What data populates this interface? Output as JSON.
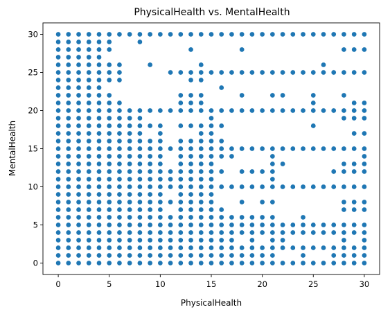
{
  "chart_data": {
    "type": "scatter",
    "title": "PhysicalHealth vs. MentalHealth",
    "xlabel": "PhysicalHealth",
    "ylabel": "MentalHealth",
    "xlim": [
      -1.5,
      31.5
    ],
    "ylim": [
      -1.5,
      31.5
    ],
    "xticks": [
      0,
      5,
      10,
      15,
      20,
      25,
      30
    ],
    "yticks": [
      0,
      5,
      10,
      15,
      20,
      25,
      30
    ],
    "grid": false,
    "marker_color": "#1f77b4",
    "missing_points": [
      [
        5,
        23
      ],
      [
        5,
        27
      ],
      [
        6,
        22
      ],
      [
        6,
        23
      ],
      [
        6,
        27
      ],
      [
        6,
        28
      ],
      [
        6,
        29
      ],
      [
        7,
        21
      ],
      [
        7,
        22
      ],
      [
        7,
        23
      ],
      [
        7,
        24
      ],
      [
        7,
        25
      ],
      [
        7,
        26
      ],
      [
        7,
        27
      ],
      [
        7,
        28
      ],
      [
        7,
        29
      ],
      [
        8,
        21
      ],
      [
        8,
        22
      ],
      [
        8,
        23
      ],
      [
        8,
        24
      ],
      [
        8,
        25
      ],
      [
        8,
        26
      ],
      [
        8,
        27
      ],
      [
        8,
        28
      ],
      [
        9,
        17
      ],
      [
        9,
        19
      ],
      [
        9,
        21
      ],
      [
        9,
        22
      ],
      [
        9,
        23
      ],
      [
        9,
        24
      ],
      [
        9,
        25
      ],
      [
        9,
        27
      ],
      [
        9,
        28
      ],
      [
        9,
        29
      ],
      [
        10,
        19
      ],
      [
        10,
        21
      ],
      [
        10,
        22
      ],
      [
        10,
        23
      ],
      [
        10,
        24
      ],
      [
        10,
        25
      ],
      [
        10,
        26
      ],
      [
        10,
        27
      ],
      [
        10,
        28
      ],
      [
        10,
        29
      ],
      [
        11,
        7
      ],
      [
        11,
        9
      ],
      [
        11,
        13
      ],
      [
        11,
        14
      ],
      [
        11,
        16
      ],
      [
        11,
        17
      ],
      [
        11,
        18
      ],
      [
        11,
        19
      ],
      [
        11,
        21
      ],
      [
        11,
        22
      ],
      [
        11,
        23
      ],
      [
        11,
        24
      ],
      [
        11,
        26
      ],
      [
        11,
        27
      ],
      [
        11,
        28
      ],
      [
        11,
        29
      ],
      [
        12,
        17
      ],
      [
        12,
        19
      ],
      [
        12,
        23
      ],
      [
        12,
        24
      ],
      [
        12,
        26
      ],
      [
        12,
        27
      ],
      [
        12,
        28
      ],
      [
        12,
        29
      ],
      [
        13,
        17
      ],
      [
        13,
        19
      ],
      [
        13,
        23
      ],
      [
        13,
        26
      ],
      [
        13,
        27
      ],
      [
        13,
        29
      ],
      [
        14,
        19
      ],
      [
        14,
        23
      ],
      [
        14,
        27
      ],
      [
        14,
        28
      ],
      [
        14,
        29
      ],
      [
        15,
        21
      ],
      [
        15,
        22
      ],
      [
        15,
        23
      ],
      [
        15,
        24
      ],
      [
        15,
        26
      ],
      [
        15,
        27
      ],
      [
        15,
        28
      ],
      [
        15,
        29
      ],
      [
        16,
        8
      ],
      [
        16,
        9
      ],
      [
        16,
        11
      ],
      [
        16,
        13
      ],
      [
        16,
        17
      ],
      [
        16,
        19
      ],
      [
        16,
        21
      ],
      [
        16,
        22
      ],
      [
        16,
        24
      ],
      [
        16,
        26
      ],
      [
        16,
        27
      ],
      [
        16,
        28
      ],
      [
        16,
        29
      ],
      [
        17,
        7
      ],
      [
        17,
        8
      ],
      [
        17,
        9
      ],
      [
        17,
        11
      ],
      [
        17,
        12
      ],
      [
        17,
        13
      ],
      [
        17,
        16
      ],
      [
        17,
        17
      ],
      [
        17,
        18
      ],
      [
        17,
        19
      ],
      [
        17,
        21
      ],
      [
        17,
        22
      ],
      [
        17,
        23
      ],
      [
        17,
        24
      ],
      [
        17,
        26
      ],
      [
        17,
        27
      ],
      [
        17,
        28
      ],
      [
        17,
        29
      ],
      [
        18,
        3
      ],
      [
        18,
        7
      ],
      [
        18,
        9
      ],
      [
        18,
        11
      ],
      [
        18,
        13
      ],
      [
        18,
        14
      ],
      [
        18,
        16
      ],
      [
        18,
        17
      ],
      [
        18,
        18
      ],
      [
        18,
        19
      ],
      [
        18,
        21
      ],
      [
        18,
        23
      ],
      [
        18,
        24
      ],
      [
        18,
        26
      ],
      [
        18,
        27
      ],
      [
        18,
        29
      ],
      [
        19,
        7
      ],
      [
        19,
        8
      ],
      [
        19,
        9
      ],
      [
        19,
        11
      ],
      [
        19,
        13
      ],
      [
        19,
        14
      ],
      [
        19,
        16
      ],
      [
        19,
        17
      ],
      [
        19,
        18
      ],
      [
        19,
        19
      ],
      [
        19,
        21
      ],
      [
        19,
        22
      ],
      [
        19,
        23
      ],
      [
        19,
        24
      ],
      [
        19,
        26
      ],
      [
        19,
        27
      ],
      [
        19,
        28
      ],
      [
        19,
        29
      ],
      [
        20,
        3
      ],
      [
        20,
        7
      ],
      [
        20,
        9
      ],
      [
        20,
        11
      ],
      [
        20,
        13
      ],
      [
        20,
        14
      ],
      [
        20,
        16
      ],
      [
        20,
        17
      ],
      [
        20,
        18
      ],
      [
        20,
        19
      ],
      [
        20,
        21
      ],
      [
        20,
        22
      ],
      [
        20,
        23
      ],
      [
        20,
        24
      ],
      [
        20,
        26
      ],
      [
        20,
        27
      ],
      [
        20,
        28
      ],
      [
        20,
        29
      ],
      [
        21,
        7
      ],
      [
        21,
        9
      ],
      [
        21,
        16
      ],
      [
        21,
        17
      ],
      [
        21,
        18
      ],
      [
        21,
        19
      ],
      [
        21,
        21
      ],
      [
        21,
        23
      ],
      [
        21,
        24
      ],
      [
        21,
        26
      ],
      [
        21,
        27
      ],
      [
        21,
        28
      ],
      [
        21,
        29
      ],
      [
        22,
        1
      ],
      [
        22,
        6
      ],
      [
        22,
        7
      ],
      [
        22,
        8
      ],
      [
        22,
        9
      ],
      [
        22,
        11
      ],
      [
        22,
        12
      ],
      [
        22,
        14
      ],
      [
        22,
        16
      ],
      [
        22,
        17
      ],
      [
        22,
        18
      ],
      [
        22,
        19
      ],
      [
        22,
        21
      ],
      [
        22,
        23
      ],
      [
        22,
        24
      ],
      [
        22,
        26
      ],
      [
        22,
        27
      ],
      [
        22,
        28
      ],
      [
        22,
        29
      ],
      [
        23,
        1
      ],
      [
        23,
        3
      ],
      [
        23,
        6
      ],
      [
        23,
        7
      ],
      [
        23,
        8
      ],
      [
        23,
        9
      ],
      [
        23,
        11
      ],
      [
        23,
        12
      ],
      [
        23,
        13
      ],
      [
        23,
        14
      ],
      [
        23,
        16
      ],
      [
        23,
        17
      ],
      [
        23,
        18
      ],
      [
        23,
        19
      ],
      [
        23,
        21
      ],
      [
        23,
        22
      ],
      [
        23,
        23
      ],
      [
        23,
        24
      ],
      [
        23,
        26
      ],
      [
        23,
        27
      ],
      [
        23,
        28
      ],
      [
        23,
        29
      ],
      [
        24,
        3
      ],
      [
        24,
        7
      ],
      [
        24,
        8
      ],
      [
        24,
        9
      ],
      [
        24,
        11
      ],
      [
        24,
        12
      ],
      [
        24,
        13
      ],
      [
        24,
        14
      ],
      [
        24,
        16
      ],
      [
        24,
        17
      ],
      [
        24,
        18
      ],
      [
        24,
        19
      ],
      [
        24,
        21
      ],
      [
        24,
        22
      ],
      [
        24,
        23
      ],
      [
        24,
        24
      ],
      [
        24,
        26
      ],
      [
        24,
        27
      ],
      [
        24,
        28
      ],
      [
        24,
        29
      ],
      [
        25,
        1
      ],
      [
        25,
        3
      ],
      [
        25,
        6
      ],
      [
        25,
        7
      ],
      [
        25,
        8
      ],
      [
        25,
        9
      ],
      [
        25,
        11
      ],
      [
        25,
        12
      ],
      [
        25,
        13
      ],
      [
        25,
        14
      ],
      [
        25,
        16
      ],
      [
        25,
        17
      ],
      [
        25,
        19
      ],
      [
        25,
        23
      ],
      [
        25,
        24
      ],
      [
        25,
        26
      ],
      [
        25,
        27
      ],
      [
        25,
        28
      ],
      [
        25,
        29
      ],
      [
        26,
        1
      ],
      [
        26,
        3
      ],
      [
        26,
        6
      ],
      [
        26,
        7
      ],
      [
        26,
        8
      ],
      [
        26,
        9
      ],
      [
        26,
        11
      ],
      [
        26,
        12
      ],
      [
        26,
        13
      ],
      [
        26,
        14
      ],
      [
        26,
        16
      ],
      [
        26,
        17
      ],
      [
        26,
        18
      ],
      [
        26,
        19
      ],
      [
        26,
        21
      ],
      [
        26,
        22
      ],
      [
        26,
        23
      ],
      [
        26,
        24
      ],
      [
        26,
        27
      ],
      [
        26,
        28
      ],
      [
        26,
        29
      ],
      [
        27,
        3
      ],
      [
        27,
        6
      ],
      [
        27,
        7
      ],
      [
        27,
        8
      ],
      [
        27,
        9
      ],
      [
        27,
        11
      ],
      [
        27,
        13
      ],
      [
        27,
        14
      ],
      [
        27,
        16
      ],
      [
        27,
        17
      ],
      [
        27,
        18
      ],
      [
        27,
        19
      ],
      [
        27,
        21
      ],
      [
        27,
        22
      ],
      [
        27,
        23
      ],
      [
        27,
        24
      ],
      [
        27,
        26
      ],
      [
        27,
        27
      ],
      [
        27,
        28
      ],
      [
        27,
        29
      ],
      [
        28,
        6
      ],
      [
        28,
        9
      ],
      [
        28,
        11
      ],
      [
        28,
        14
      ],
      [
        28,
        16
      ],
      [
        28,
        17
      ],
      [
        28,
        18
      ],
      [
        28,
        21
      ],
      [
        28,
        23
      ],
      [
        28,
        24
      ],
      [
        28,
        26
      ],
      [
        28,
        27
      ],
      [
        28,
        29
      ],
      [
        29,
        3
      ],
      [
        29,
        6
      ],
      [
        29,
        9
      ],
      [
        29,
        11
      ],
      [
        29,
        14
      ],
      [
        29,
        16
      ],
      [
        29,
        18
      ],
      [
        29,
        22
      ],
      [
        29,
        23
      ],
      [
        29,
        24
      ],
      [
        29,
        26
      ],
      [
        29,
        27
      ],
      [
        29,
        29
      ],
      [
        30,
        6
      ],
      [
        30,
        9
      ],
      [
        30,
        11
      ],
      [
        30,
        16
      ],
      [
        30,
        18
      ],
      [
        30,
        22
      ],
      [
        30,
        23
      ],
      [
        30,
        24
      ],
      [
        30,
        26
      ],
      [
        30,
        27
      ],
      [
        30,
        29
      ]
    ]
  }
}
